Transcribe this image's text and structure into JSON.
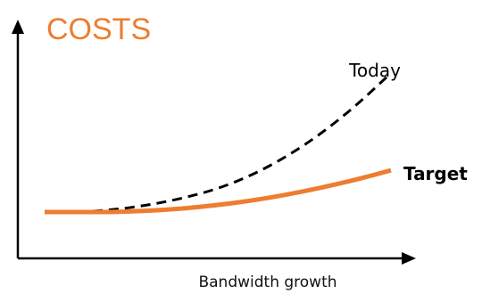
{
  "chart_data": {
    "type": "line",
    "title": "",
    "ylabel": "COSTS",
    "xlabel": "Bandwidth growth",
    "grid": false,
    "legend": "none",
    "colors": {
      "ylabel": "#ED7D31",
      "axis": "#000000"
    },
    "xlim": [
      0,
      1
    ],
    "ylim": [
      0,
      1
    ],
    "series": [
      {
        "name": "Today",
        "style": "dashed",
        "color": "#000000",
        "label_bold": false,
        "x": [
          0,
          0.1,
          0.2,
          0.3,
          0.4,
          0.5,
          0.6,
          0.7,
          0.8,
          0.9,
          1.0
        ],
        "y": [
          0.2,
          0.2,
          0.21,
          0.23,
          0.26,
          0.3,
          0.36,
          0.44,
          0.54,
          0.66,
          0.8
        ]
      },
      {
        "name": "Target",
        "style": "solid",
        "color": "#ED7D31",
        "label_bold": true,
        "x": [
          0,
          0.1,
          0.2,
          0.3,
          0.4,
          0.5,
          0.6,
          0.7,
          0.8,
          0.9,
          1.0
        ],
        "y": [
          0.2,
          0.2,
          0.2,
          0.205,
          0.215,
          0.23,
          0.25,
          0.275,
          0.305,
          0.34,
          0.38
        ]
      }
    ]
  }
}
